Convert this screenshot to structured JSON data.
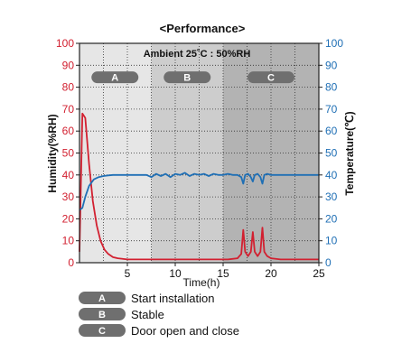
{
  "chart_data": {
    "type": "line",
    "title": "<Performance>",
    "annotation": "Ambient 25˚C : 50%RH",
    "xlabel": "Time(h)",
    "ylabel_left": "Humidity(%RH)",
    "ylabel_right": "Temperature(℃)",
    "xlim": [
      0,
      25
    ],
    "ylim_left": [
      0,
      100
    ],
    "ylim_right": [
      0,
      100
    ],
    "x_ticks": [
      "5",
      "10",
      "15",
      "20",
      "25"
    ],
    "x_tick_values": [
      5,
      10,
      15,
      20,
      25
    ],
    "y_ticks_left": [
      "0",
      "10",
      "20",
      "30",
      "40",
      "50",
      "60",
      "70",
      "80",
      "90",
      "100"
    ],
    "y_ticks_right": [
      "0",
      "10",
      "20",
      "30",
      "40",
      "50",
      "60",
      "70",
      "80",
      "90",
      "100"
    ],
    "y_tick_values": [
      0,
      10,
      20,
      30,
      40,
      50,
      60,
      70,
      80,
      90,
      100
    ],
    "grid": true,
    "phases": [
      {
        "letter": "A",
        "x_start": 0,
        "x_end": 7.5,
        "shade": "#e6e6e6"
      },
      {
        "letter": "B",
        "x_start": 7.5,
        "x_end": 15,
        "shade": "#cdcdcd"
      },
      {
        "letter": "C",
        "x_start": 15,
        "x_end": 25,
        "shade": "#b3b3b3"
      }
    ],
    "series": [
      {
        "axis": "left",
        "color": "#d22030",
        "x": [
          0,
          0.3,
          0.6,
          1.0,
          1.4,
          1.8,
          2.2,
          2.6,
          3.0,
          3.5,
          4.0,
          5.0,
          7.0,
          10.0,
          14.0,
          15.5,
          16.5,
          16.9,
          17.1,
          17.3,
          17.6,
          17.9,
          18.1,
          18.3,
          18.6,
          18.9,
          19.1,
          19.3,
          19.6,
          20.0,
          21.0,
          25.0
        ],
        "y": [
          5,
          68,
          66,
          45,
          28,
          17,
          10,
          6,
          4,
          2.5,
          2,
          1.5,
          1.5,
          1.5,
          1.5,
          1.5,
          2,
          4,
          15,
          5,
          3,
          5,
          14,
          5,
          3,
          5,
          16,
          5,
          3,
          2,
          1.5,
          1.5
        ]
      },
      {
        "axis": "right",
        "color": "#1f6fb5",
        "x": [
          0,
          0.3,
          0.6,
          1.0,
          1.5,
          2.0,
          2.5,
          3.0,
          3.5,
          4.0,
          4.5,
          5.0,
          6.0,
          7.0,
          7.5,
          8.0,
          8.5,
          9.0,
          9.5,
          10.0,
          10.5,
          11.0,
          11.5,
          12.0,
          12.5,
          13.0,
          13.5,
          14.0,
          14.5,
          15.0,
          15.5,
          16.0,
          16.5,
          16.9,
          17.1,
          17.3,
          17.6,
          17.9,
          18.1,
          18.3,
          18.6,
          18.9,
          19.1,
          19.3,
          19.6,
          20.0,
          20.5,
          21.0,
          22.0,
          23.0,
          24.0,
          25.0
        ],
        "y": [
          24,
          25,
          30,
          35,
          38,
          39,
          39.5,
          39.8,
          40,
          40,
          40,
          40,
          40,
          40,
          39,
          40.5,
          39.5,
          40.5,
          39,
          40.5,
          40,
          41,
          39.5,
          40.5,
          40,
          40.5,
          39.5,
          40.5,
          40,
          40,
          40.5,
          40,
          40,
          39,
          36,
          40,
          40.5,
          39,
          37,
          40,
          40.5,
          39,
          36,
          40,
          40.5,
          40,
          40,
          40,
          40,
          40,
          40,
          40
        ]
      }
    ]
  },
  "legend": {
    "items": [
      {
        "letter": "A",
        "label": "Start installation"
      },
      {
        "letter": "B",
        "label": "Stable"
      },
      {
        "letter": "C",
        "label": "Door open and close"
      }
    ]
  }
}
